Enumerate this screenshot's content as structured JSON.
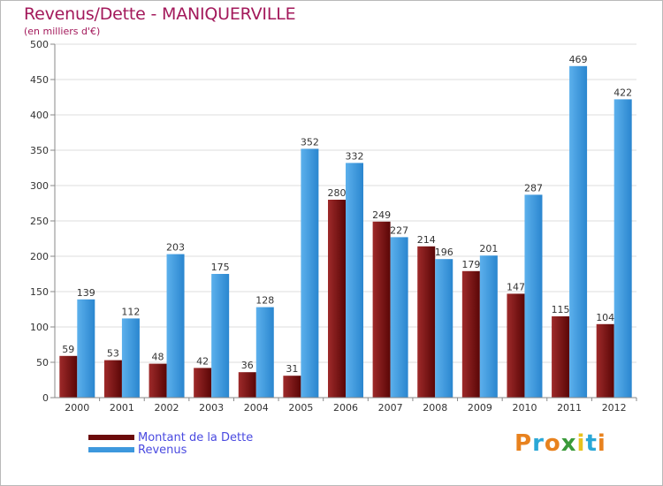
{
  "title": "Revenus/Dette - MANIQUERVILLE",
  "subtitle": "(en milliers d'€)",
  "legend": [
    {
      "label": "Montant de la Dette",
      "color": "#6b0a0a"
    },
    {
      "label": "Revenus",
      "color": "#3d98dd"
    }
  ],
  "logo": {
    "letters": [
      "P",
      "r",
      "o",
      "x",
      "i",
      "t",
      "i"
    ],
    "colors": [
      "#e8821e",
      "#2aa7d6",
      "#e8821e",
      "#3a9a3a",
      "#e8c21e",
      "#2aa7d6",
      "#e8821e"
    ]
  },
  "chart_data": {
    "type": "bar",
    "categories": [
      "2000",
      "2001",
      "2002",
      "2003",
      "2004",
      "2005",
      "2006",
      "2007",
      "2008",
      "2009",
      "2010",
      "2011",
      "2012"
    ],
    "series": [
      {
        "name": "Montant de la Dette",
        "color": "#6b0a0a",
        "values": [
          59,
          53,
          48,
          42,
          36,
          31,
          280,
          249,
          214,
          179,
          147,
          115,
          104
        ]
      },
      {
        "name": "Revenus",
        "color": "#3d98dd",
        "values": [
          139,
          112,
          203,
          175,
          128,
          352,
          332,
          227,
          196,
          201,
          287,
          469,
          422
        ]
      }
    ],
    "yticks": [
      0,
      50,
      100,
      150,
      200,
      250,
      300,
      350,
      400,
      450,
      500
    ],
    "ylim": [
      0,
      500
    ],
    "grid": true,
    "xlabel": "",
    "ylabel": ""
  }
}
